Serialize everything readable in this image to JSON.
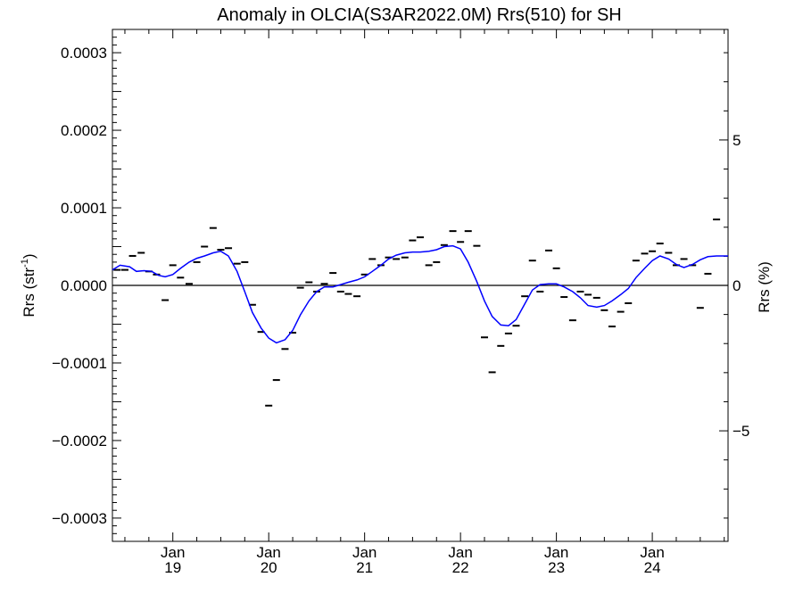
{
  "chart_data": {
    "type": "line",
    "title": "Anomaly in OLCIA(S3AR2022.0M) Rrs(510) for SH",
    "ylabel_main": "Rrs (str",
    "ylabel_sup": "-1",
    "ylabel_close": ")",
    "y2label": "Rrs (%)",
    "ylim": [
      -0.00033,
      0.00033
    ],
    "y2lim": [
      -8.8,
      8.8
    ],
    "yticks": [
      {
        "v": 0.0003,
        "label": "0.0003"
      },
      {
        "v": 0.0002,
        "label": "0.0002"
      },
      {
        "v": 0.0001,
        "label": "0.0001"
      },
      {
        "v": 0.0,
        "label": "0.0000"
      },
      {
        "v": -0.0001,
        "label": "−0.0001"
      },
      {
        "v": -0.0002,
        "label": "−0.0002"
      },
      {
        "v": -0.0003,
        "label": "−0.0003"
      }
    ],
    "y2ticks": [
      {
        "v": 5,
        "label": "5"
      },
      {
        "v": 0,
        "label": "0"
      },
      {
        "v": -5,
        "label": "−5"
      }
    ],
    "xlim": [
      2018.37,
      2024.79
    ],
    "xticks": [
      {
        "v": 2019.0,
        "month": "Jan",
        "year": "19"
      },
      {
        "v": 2020.0,
        "month": "Jan",
        "year": "20"
      },
      {
        "v": 2021.0,
        "month": "Jan",
        "year": "21"
      },
      {
        "v": 2022.0,
        "month": "Jan",
        "year": "22"
      },
      {
        "v": 2023.0,
        "month": "Jan",
        "year": "23"
      },
      {
        "v": 2024.0,
        "month": "Jan",
        "year": "24"
      }
    ],
    "series": [
      {
        "style": "dash-markers",
        "color": "#000000",
        "points": [
          [
            2018.42,
            2e-05
          ],
          [
            2018.5,
            2e-05
          ],
          [
            2018.58,
            3.8e-05
          ],
          [
            2018.67,
            4.2e-05
          ],
          [
            2018.75,
            1.8e-05
          ],
          [
            2018.83,
            1.4e-05
          ],
          [
            2018.92,
            -1.9e-05
          ],
          [
            2019.0,
            2.6e-05
          ],
          [
            2019.08,
            1e-05
          ],
          [
            2019.17,
            2e-06
          ],
          [
            2019.25,
            3e-05
          ],
          [
            2019.33,
            5e-05
          ],
          [
            2019.42,
            7.4e-05
          ],
          [
            2019.5,
            4.6e-05
          ],
          [
            2019.58,
            4.8e-05
          ],
          [
            2019.67,
            2.8e-05
          ],
          [
            2019.75,
            3e-05
          ],
          [
            2019.83,
            -2.5e-05
          ],
          [
            2019.92,
            -6e-05
          ],
          [
            2020.0,
            -0.000155
          ],
          [
            2020.08,
            -0.000122
          ],
          [
            2020.17,
            -8.2e-05
          ],
          [
            2020.25,
            -6.1e-05
          ],
          [
            2020.33,
            -3e-06
          ],
          [
            2020.42,
            4e-06
          ],
          [
            2020.5,
            -8e-06
          ],
          [
            2020.58,
            2e-06
          ],
          [
            2020.67,
            1.6e-05
          ],
          [
            2020.75,
            -8e-06
          ],
          [
            2020.83,
            -1.1e-05
          ],
          [
            2020.92,
            -1.4e-05
          ],
          [
            2021.0,
            1.4e-05
          ],
          [
            2021.08,
            3.4e-05
          ],
          [
            2021.17,
            2.6e-05
          ],
          [
            2021.25,
            3.6e-05
          ],
          [
            2021.33,
            3.4e-05
          ],
          [
            2021.42,
            3.6e-05
          ],
          [
            2021.5,
            5.8e-05
          ],
          [
            2021.58,
            6.2e-05
          ],
          [
            2021.67,
            2.6e-05
          ],
          [
            2021.75,
            3e-05
          ],
          [
            2021.83,
            5.2e-05
          ],
          [
            2021.92,
            7e-05
          ],
          [
            2022.0,
            5.6e-05
          ],
          [
            2022.08,
            7e-05
          ],
          [
            2022.17,
            5.1e-05
          ],
          [
            2022.25,
            -6.7e-05
          ],
          [
            2022.33,
            -0.000112
          ],
          [
            2022.42,
            -7.8e-05
          ],
          [
            2022.5,
            -6.2e-05
          ],
          [
            2022.58,
            -5.2e-05
          ],
          [
            2022.67,
            -1.4e-05
          ],
          [
            2022.75,
            3.2e-05
          ],
          [
            2022.83,
            -8e-06
          ],
          [
            2022.92,
            4.5e-05
          ],
          [
            2023.0,
            2.2e-05
          ],
          [
            2023.08,
            -1.5e-05
          ],
          [
            2023.17,
            -4.5e-05
          ],
          [
            2023.25,
            -8e-06
          ],
          [
            2023.33,
            -1.2e-05
          ],
          [
            2023.42,
            -1.6e-05
          ],
          [
            2023.5,
            -3.2e-05
          ],
          [
            2023.58,
            -5.3e-05
          ],
          [
            2023.67,
            -3.4e-05
          ],
          [
            2023.75,
            -2.3e-05
          ],
          [
            2023.83,
            3.2e-05
          ],
          [
            2023.92,
            4.1e-05
          ],
          [
            2024.0,
            4.4e-05
          ],
          [
            2024.08,
            5.4e-05
          ],
          [
            2024.17,
            4.2e-05
          ],
          [
            2024.25,
            2.6e-05
          ],
          [
            2024.33,
            3.4e-05
          ],
          [
            2024.42,
            2.6e-05
          ],
          [
            2024.5,
            -2.9e-05
          ],
          [
            2024.58,
            1.5e-05
          ],
          [
            2024.67,
            8.5e-05
          ]
        ]
      },
      {
        "style": "line",
        "color": "#0000ff",
        "points": [
          [
            2018.37,
            2e-05
          ],
          [
            2018.45,
            2.6e-05
          ],
          [
            2018.55,
            2.4e-05
          ],
          [
            2018.62,
            1.8e-05
          ],
          [
            2018.7,
            1.9e-05
          ],
          [
            2018.78,
            1.8e-05
          ],
          [
            2018.85,
            1.3e-05
          ],
          [
            2018.92,
            1.1e-05
          ],
          [
            2019.0,
            1.4e-05
          ],
          [
            2019.08,
            2.2e-05
          ],
          [
            2019.17,
            3e-05
          ],
          [
            2019.25,
            3.5e-05
          ],
          [
            2019.33,
            3.8e-05
          ],
          [
            2019.42,
            4.2e-05
          ],
          [
            2019.5,
            4.4e-05
          ],
          [
            2019.58,
            3.8e-05
          ],
          [
            2019.67,
            1.8e-05
          ],
          [
            2019.75,
            -8e-06
          ],
          [
            2019.83,
            -3.5e-05
          ],
          [
            2019.92,
            -5.5e-05
          ],
          [
            2020.0,
            -6.8e-05
          ],
          [
            2020.08,
            -7.4e-05
          ],
          [
            2020.17,
            -7e-05
          ],
          [
            2020.25,
            -5.8e-05
          ],
          [
            2020.33,
            -3.8e-05
          ],
          [
            2020.42,
            -2e-05
          ],
          [
            2020.5,
            -8e-06
          ],
          [
            2020.58,
            -2e-06
          ],
          [
            2020.67,
            -2e-06
          ],
          [
            2020.75,
            1e-06
          ],
          [
            2020.83,
            4e-06
          ],
          [
            2020.92,
            7e-06
          ],
          [
            2021.0,
            1.1e-05
          ],
          [
            2021.08,
            1.8e-05
          ],
          [
            2021.17,
            2.6e-05
          ],
          [
            2021.25,
            3.4e-05
          ],
          [
            2021.33,
            3.9e-05
          ],
          [
            2021.42,
            4.2e-05
          ],
          [
            2021.5,
            4.3e-05
          ],
          [
            2021.58,
            4.3e-05
          ],
          [
            2021.67,
            4.4e-05
          ],
          [
            2021.75,
            4.6e-05
          ],
          [
            2021.83,
            5e-05
          ],
          [
            2021.92,
            5.1e-05
          ],
          [
            2022.0,
            4.7e-05
          ],
          [
            2022.08,
            3e-05
          ],
          [
            2022.17,
            5e-06
          ],
          [
            2022.25,
            -2e-05
          ],
          [
            2022.33,
            -4e-05
          ],
          [
            2022.42,
            -5.1e-05
          ],
          [
            2022.5,
            -5.2e-05
          ],
          [
            2022.58,
            -4.4e-05
          ],
          [
            2022.67,
            -2.4e-05
          ],
          [
            2022.75,
            -6e-06
          ],
          [
            2022.83,
            1e-06
          ],
          [
            2022.92,
            2e-06
          ],
          [
            2023.0,
            2e-06
          ],
          [
            2023.08,
            -2e-06
          ],
          [
            2023.17,
            -8e-06
          ],
          [
            2023.25,
            -1.6e-05
          ],
          [
            2023.33,
            -2.6e-05
          ],
          [
            2023.42,
            -2.8e-05
          ],
          [
            2023.5,
            -2.6e-05
          ],
          [
            2023.58,
            -2e-05
          ],
          [
            2023.67,
            -1.2e-05
          ],
          [
            2023.75,
            -4e-06
          ],
          [
            2023.83,
            1e-05
          ],
          [
            2023.92,
            2.2e-05
          ],
          [
            2024.0,
            3.2e-05
          ],
          [
            2024.08,
            3.8e-05
          ],
          [
            2024.17,
            3.4e-05
          ],
          [
            2024.25,
            2.7e-05
          ],
          [
            2024.33,
            2.3e-05
          ],
          [
            2024.42,
            2.7e-05
          ],
          [
            2024.5,
            3.3e-05
          ],
          [
            2024.58,
            3.7e-05
          ],
          [
            2024.67,
            3.8e-05
          ],
          [
            2024.79,
            3.8e-05
          ]
        ]
      }
    ],
    "zero_line": true,
    "grid": false
  }
}
